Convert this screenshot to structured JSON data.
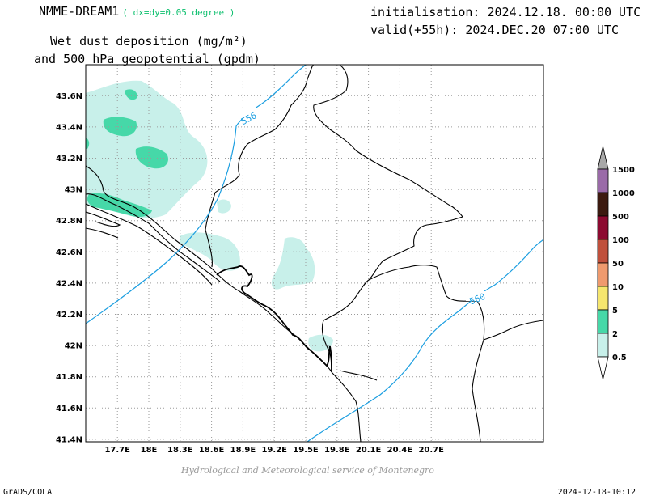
{
  "header": {
    "model": "NMME-DREAM1",
    "resolution": "( dx=dy=0.05 degree )",
    "title_line1": "Wet dust deposition (mg/m²)",
    "title_line2": "and 500 hPa geopotential (gpdm)",
    "init": "initialisation: 2024.12.18. 00:00 UTC",
    "valid": "valid(+55h): 2024.DEC.20 07:00 UTC"
  },
  "footer": {
    "credit": "Hydrological and Meteorological service of Montenegro",
    "software": "GrADS/COLA",
    "timestamp": "2024-12-18-10:12"
  },
  "map": {
    "lat_ticks": [
      "43.6N",
      "43.4N",
      "43.2N",
      "43N",
      "42.8N",
      "42.6N",
      "42.4N",
      "42.2N",
      "42N",
      "41.8N",
      "41.6N",
      "41.4N"
    ],
    "lon_ticks": [
      "17.7E",
      "18E",
      "18.3E",
      "18.6E",
      "18.9E",
      "19.2E",
      "19.5E",
      "19.8E",
      "20.1E",
      "20.4E",
      "20.7E"
    ],
    "contours": [
      {
        "value": 556,
        "label": "556",
        "color": "#1b9ee0"
      },
      {
        "value": 560,
        "label": "560",
        "color": "#1b9ee0"
      }
    ]
  },
  "legend": {
    "levels": [
      "0.5",
      "2",
      "5",
      "10",
      "50",
      "100",
      "500",
      "1000",
      "1500"
    ],
    "colors": [
      "#c8f0ea",
      "#46d8a8",
      "#f5e66e",
      "#ef9a6e",
      "#c0503c",
      "#8c0a30",
      "#3c1a10",
      "#9a6aa8",
      "#a8a8a8"
    ]
  }
}
